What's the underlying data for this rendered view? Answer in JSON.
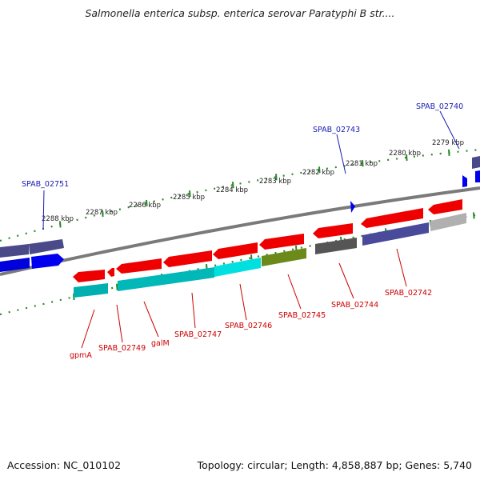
{
  "title": "Salmonella enterica subsp. enterica serovar Paratyphi B str....",
  "accession": "Accession: NC_010102",
  "summary": "Topology: circular; Length: 4,858,887 bp; Genes: 5,740",
  "colors": {
    "forward": "#0000ee",
    "forward_dark": "#333388",
    "reverse": "#ee0000",
    "cyan": "#00bfc0",
    "olive": "#6b8a1a",
    "gray": "#666666",
    "lightgray": "#bbbbbb",
    "purple": "#4a4a9a",
    "backbone": "#808080",
    "ruler": "#2a8a2a"
  },
  "scale_labels": [
    "2288 kbp",
    "2287 kbp",
    "2286 kbp",
    "2285 kbp",
    "2284 kbp",
    "2283 kbp",
    "2282 kbp",
    "2281 kbp",
    "2280 kbp",
    "2279 kbp"
  ],
  "top_gene_labels": [
    "SPAB_02751",
    "SPAB_02743",
    "SPAB_02740"
  ],
  "bottom_gene_labels": [
    "gpmA",
    "SPAB_02749",
    "galM",
    "SPAB_02747",
    "SPAB_02746",
    "SPAB_02745",
    "SPAB_02744",
    "SPAB_02742"
  ]
}
